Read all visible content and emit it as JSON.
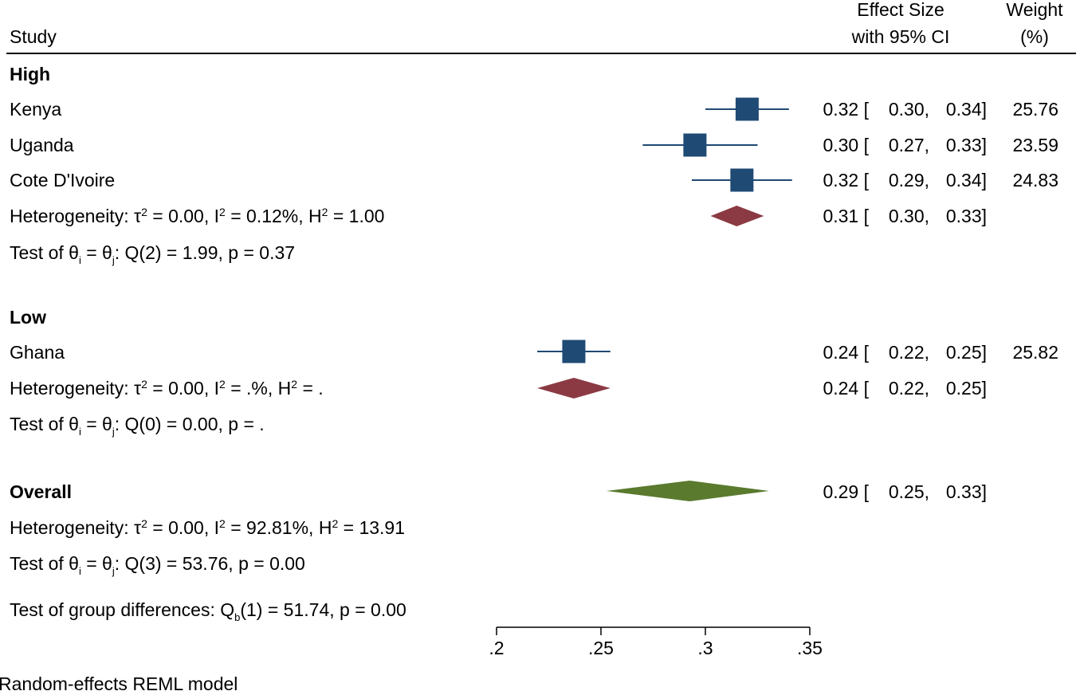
{
  "header": {
    "study_label": "Study",
    "effect_line1": "Effect Size",
    "effect_line2": "with 95% CI",
    "weight_line1": "Weight",
    "weight_line2": "(%)"
  },
  "groups": [
    {
      "name": "High",
      "studies": [
        {
          "name": "Kenya",
          "es": 0.32,
          "lo": 0.3,
          "hi": 0.34,
          "es_text": "0.32 [",
          "lo_text": "0.30,",
          "hi_text": "0.34]",
          "weight": "25.76"
        },
        {
          "name": "Uganda",
          "es": 0.295,
          "lo": 0.27,
          "hi": 0.325,
          "es_text": "0.30 [",
          "lo_text": "0.27,",
          "hi_text": "0.33]",
          "weight": "23.59"
        },
        {
          "name": "Cote D'Ivoire",
          "es": 0.3175,
          "lo": 0.2935,
          "hi": 0.3415,
          "es_text": "0.32 [",
          "lo_text": "0.29,",
          "hi_text": "0.34]",
          "weight": "24.83"
        }
      ],
      "pooled": {
        "es": 0.315,
        "lo": 0.3025,
        "hi": 0.328,
        "es_text": "0.31 [",
        "lo_text": "0.30,",
        "hi_text": "0.33]"
      },
      "heterogeneity": {
        "prefix": "Heterogeneity: τ",
        "tau_rest": " = 0.00, I",
        "i2_rest": " = 0.12%, H",
        "h2_rest": " = 1.00"
      },
      "test": {
        "prefix": "Test of θ",
        "sub_i": "i",
        "mid": " = θ",
        "sub_j": "j",
        "rest": ": Q(2) = 1.99, p = 0.37"
      }
    },
    {
      "name": "Low",
      "studies": [
        {
          "name": "Ghana",
          "es": 0.237,
          "lo": 0.2195,
          "hi": 0.2545,
          "es_text": "0.24 [",
          "lo_text": "0.22,",
          "hi_text": "0.25]",
          "weight": "25.82"
        }
      ],
      "pooled": {
        "es": 0.237,
        "lo": 0.2195,
        "hi": 0.2545,
        "es_text": "0.24 [",
        "lo_text": "0.22,",
        "hi_text": "0.25]"
      },
      "heterogeneity": {
        "prefix": "Heterogeneity: τ",
        "tau_rest": " = 0.00, I",
        "i2_rest": " = .%, H",
        "h2_rest": " = ."
      },
      "test": {
        "prefix": "Test of θ",
        "sub_i": "i",
        "mid": " = θ",
        "sub_j": "j",
        "rest": ": Q(0) = 0.00, p = ."
      }
    }
  ],
  "overall": {
    "name": "Overall",
    "pooled": {
      "es": 0.2925,
      "lo": 0.2525,
      "hi": 0.3305,
      "es_text": "0.29 [",
      "lo_text": "0.25,",
      "hi_text": "0.33]"
    },
    "heterogeneity": {
      "prefix": "Heterogeneity: τ",
      "tau_rest": " = 0.00, I",
      "i2_rest": " = 92.81%, H",
      "h2_rest": " = 13.91"
    },
    "test": {
      "prefix": "Test of θ",
      "sub_i": "i",
      "mid": " = θ",
      "sub_j": "j",
      "rest": ": Q(3) = 53.76, p = 0.00"
    }
  },
  "group_diff": {
    "prefix": "Test of group differences: Q",
    "sub_b": "b",
    "rest": "(1) = 51.74, p = 0.00"
  },
  "footnote": "Random-effects REML model",
  "superscript_2": "2",
  "chart_data": {
    "type": "forest",
    "title": "",
    "xlabel": "Effect Size with 95% CI",
    "xlim": [
      0.2,
      0.35
    ],
    "ticks": [
      0.2,
      0.25,
      0.3,
      0.35
    ],
    "tick_labels": [
      ".2",
      ".25",
      ".3",
      ".35"
    ],
    "series": [
      {
        "name": "High",
        "studies": [
          "Kenya",
          "Uganda",
          "Cote D'Ivoire"
        ],
        "es": [
          0.32,
          0.295,
          0.3175
        ],
        "lo": [
          0.3,
          0.27,
          0.2935
        ],
        "hi": [
          0.34,
          0.325,
          0.3415
        ],
        "weight": [
          25.76,
          23.59,
          24.83
        ]
      },
      {
        "name": "Low",
        "studies": [
          "Ghana"
        ],
        "es": [
          0.237
        ],
        "lo": [
          0.2195
        ],
        "hi": [
          0.2545
        ],
        "weight": [
          25.82
        ]
      }
    ],
    "colors": {
      "study": "#1f4a74",
      "subgroup_diamond": "#8b3a43",
      "overall_diamond": "#5a7a2e",
      "axis": "#000000"
    }
  }
}
